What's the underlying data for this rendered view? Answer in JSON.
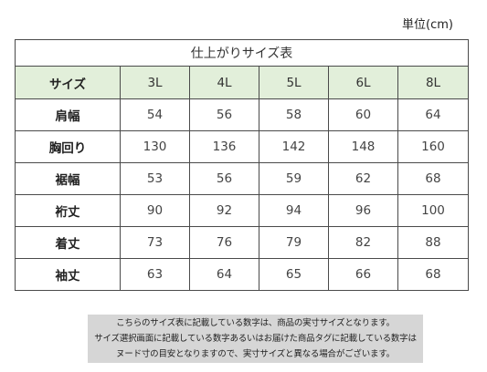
{
  "unit_label": "単位(cm)",
  "table": {
    "title": "仕上がりサイズ表",
    "corner_label": "サイズ",
    "sizes": [
      "3L",
      "4L",
      "5L",
      "6L",
      "8L"
    ],
    "rows": [
      {
        "label": "肩幅",
        "values": [
          "54",
          "56",
          "58",
          "60",
          "64"
        ]
      },
      {
        "label": "胸回り",
        "values": [
          "130",
          "136",
          "142",
          "148",
          "160"
        ]
      },
      {
        "label": "裾幅",
        "values": [
          "53",
          "56",
          "59",
          "62",
          "68"
        ]
      },
      {
        "label": "裄丈",
        "values": [
          "90",
          "92",
          "94",
          "96",
          "100"
        ]
      },
      {
        "label": "着丈",
        "values": [
          "73",
          "76",
          "79",
          "82",
          "88"
        ]
      },
      {
        "label": "袖丈",
        "values": [
          "63",
          "64",
          "65",
          "66",
          "68"
        ]
      }
    ]
  },
  "note": {
    "lines": [
      "こちらのサイズ表に記載している数字は、商品の実寸サイズとなります。",
      "サイズ選択画面に記載している数字あるいはお届けた商品タグに記載している数字は",
      "ヌード寸の目安となりますので、実寸サイズと異なる場合がございます。"
    ]
  }
}
